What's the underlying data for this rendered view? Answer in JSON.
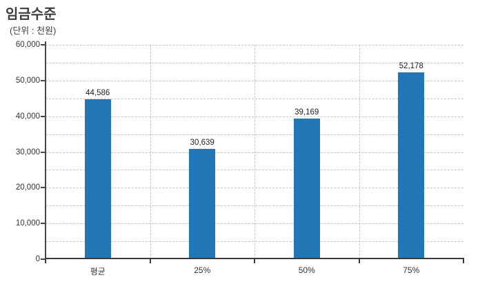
{
  "page": {
    "background": "#ffffff"
  },
  "chart": {
    "title": "임금수준",
    "unit_label": "(단위 : 천원)",
    "bar_color": "#2177b5",
    "grid_color": "#c5c5c5",
    "axis_color": "#474747",
    "text_color": "#333333"
  },
  "chart_data": {
    "type": "bar",
    "title": "임금수준",
    "subtitle": "(단위 : 천원)",
    "categories": [
      "평균",
      "25%",
      "50%",
      "75%"
    ],
    "values": [
      44586,
      30639,
      39169,
      52178
    ],
    "value_labels": [
      "44,586",
      "30,639",
      "39,169",
      "52,178"
    ],
    "xlabel": "",
    "ylabel": "",
    "ylim": [
      0,
      60000
    ],
    "y_major_step": 10000,
    "y_minor_step": 5000,
    "y_tick_labels": [
      "0",
      "10,000",
      "20,000",
      "30,000",
      "40,000",
      "50,000",
      "60,000"
    ],
    "grid": "dashed-horizontal-every-5000-and-vertical-category-separators",
    "legend_position": "none",
    "bar_color": "#2177b5"
  }
}
